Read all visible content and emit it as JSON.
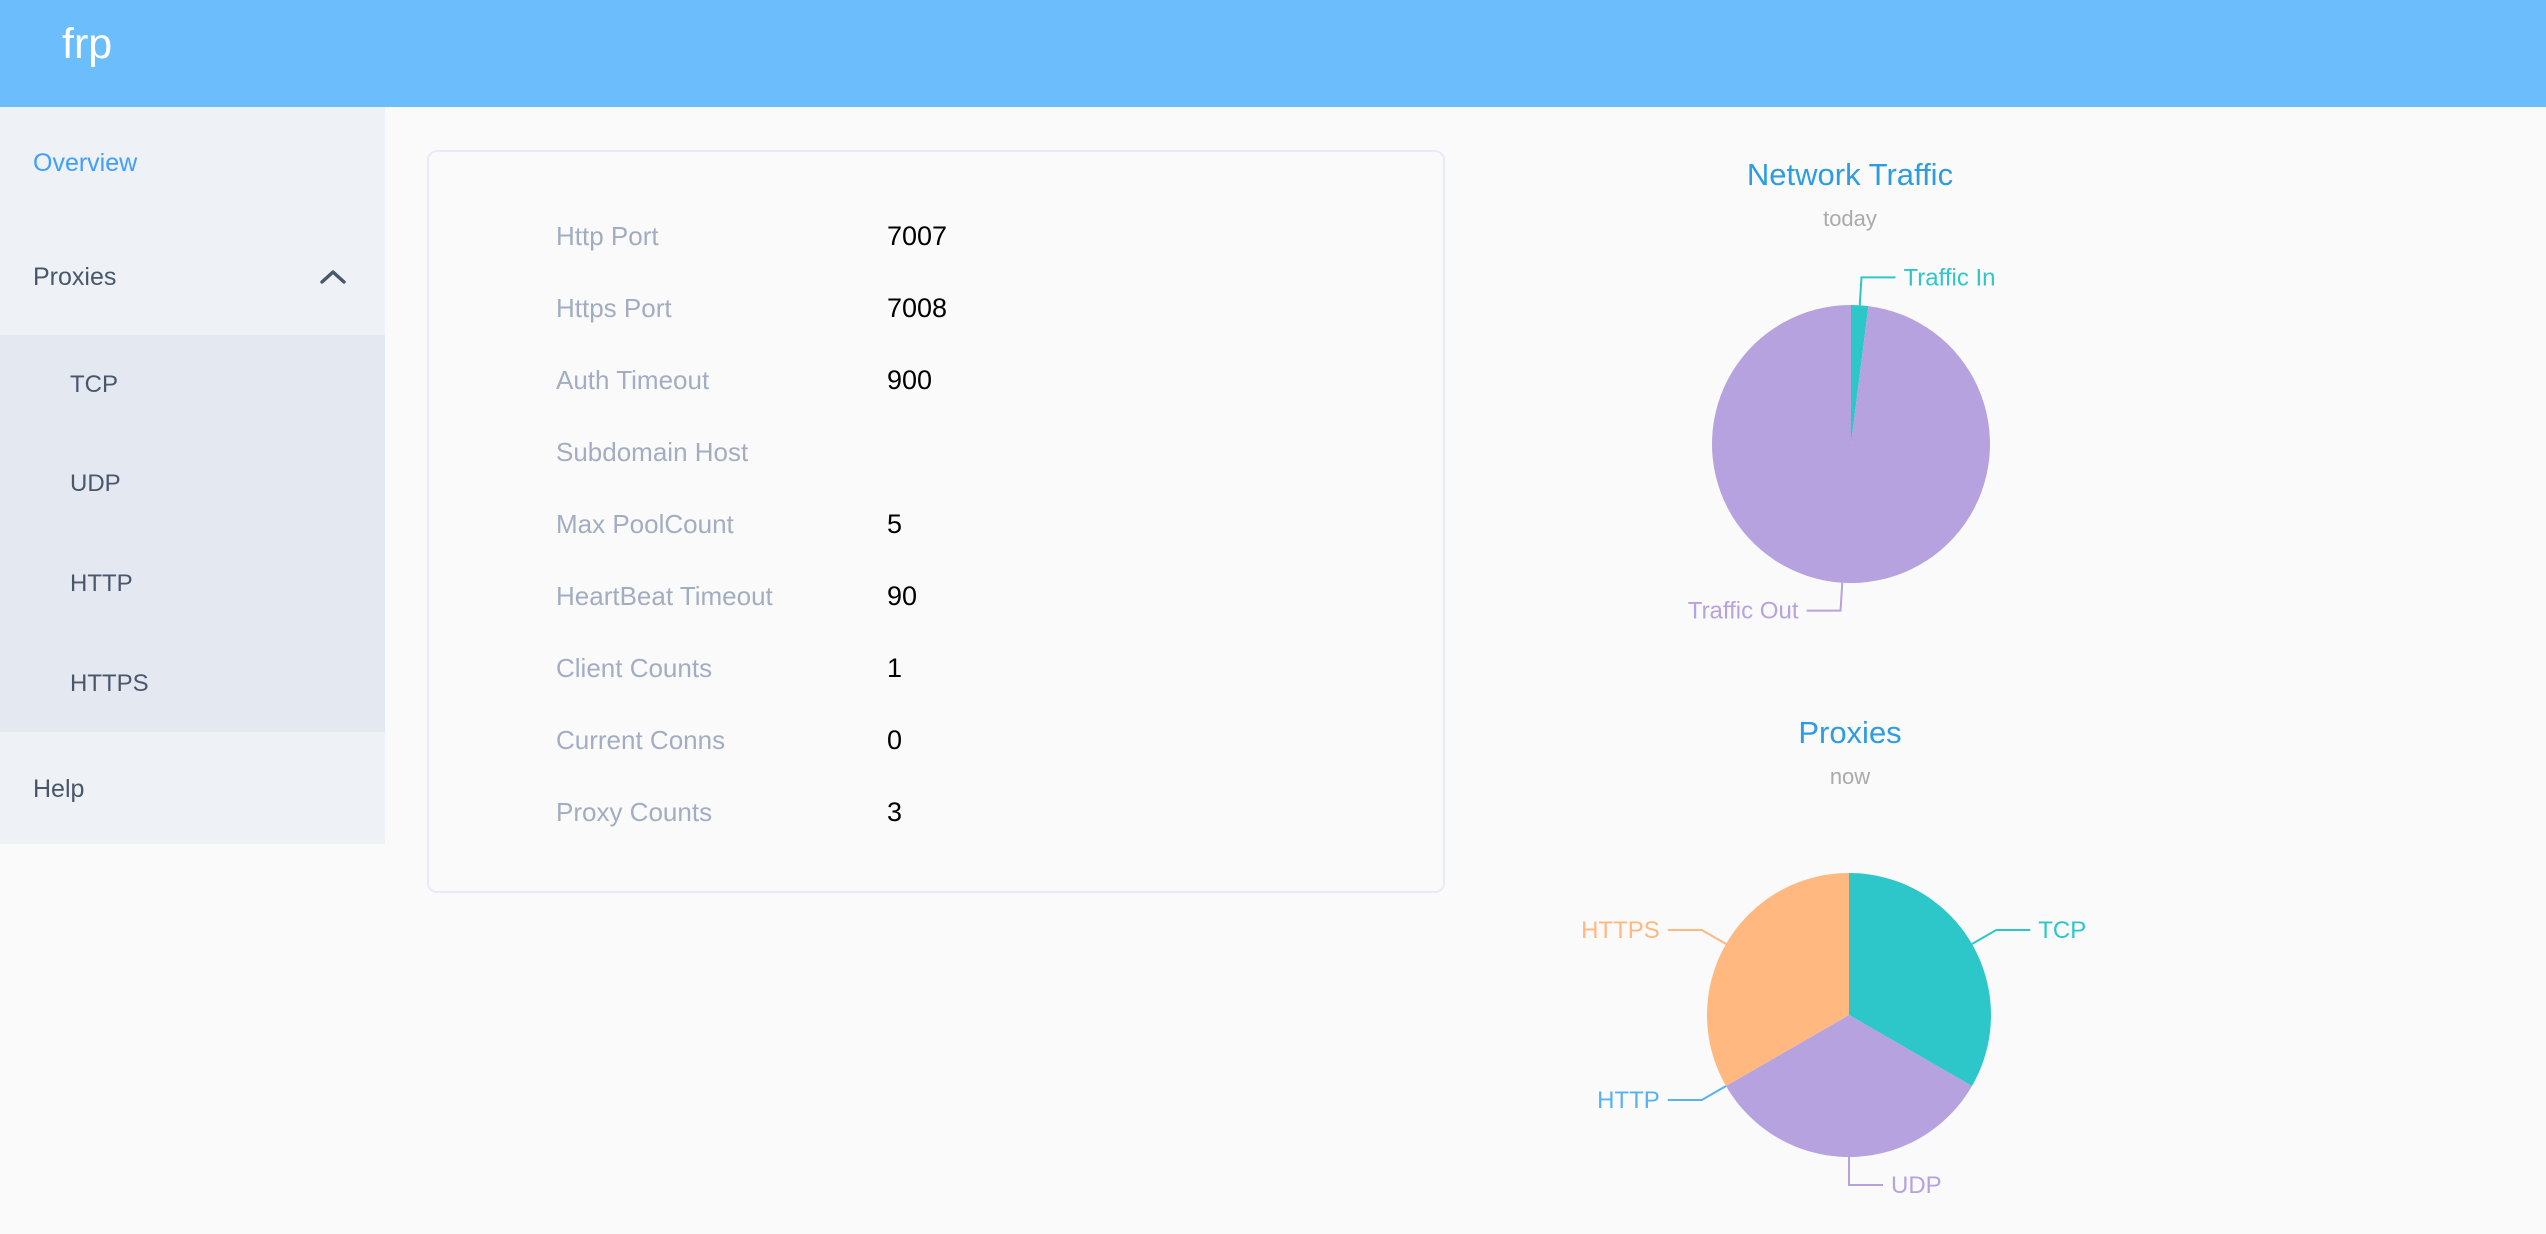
{
  "header": {
    "logo": "frp"
  },
  "sidebar": {
    "overview": "Overview",
    "proxies": "Proxies",
    "proxies_children": [
      "TCP",
      "UDP",
      "HTTP",
      "HTTPS"
    ],
    "help": "Help"
  },
  "server_info": {
    "rows": [
      {
        "label": "Http Port",
        "value": "7007"
      },
      {
        "label": "Https Port",
        "value": "7008"
      },
      {
        "label": "Auth Timeout",
        "value": "900"
      },
      {
        "label": "Subdomain Host",
        "value": ""
      },
      {
        "label": "Max PoolCount",
        "value": "5"
      },
      {
        "label": "HeartBeat Timeout",
        "value": "90"
      },
      {
        "label": "Client Counts",
        "value": "1"
      },
      {
        "label": "Current Conns",
        "value": "0"
      },
      {
        "label": "Proxy Counts",
        "value": "3"
      }
    ]
  },
  "chart_data": [
    {
      "type": "pie",
      "title": "Network Traffic",
      "subtitle": "today",
      "legend_position": "none",
      "label_style": "outside-with-leader-line",
      "series": [
        {
          "name": "Traffic In",
          "value": 2,
          "color": "#2ec7c9"
        },
        {
          "name": "Traffic Out",
          "value": 98,
          "color": "#b6a2de"
        }
      ]
    },
    {
      "type": "pie",
      "title": "Proxies",
      "subtitle": "now",
      "legend_position": "none",
      "label_style": "outside-with-leader-line",
      "series": [
        {
          "name": "TCP",
          "value": 1,
          "color": "#2ec7c9"
        },
        {
          "name": "UDP",
          "value": 1,
          "color": "#b6a2de"
        },
        {
          "name": "HTTP",
          "value": 0,
          "color": "#5ab1ef"
        },
        {
          "name": "HTTPS",
          "value": 1,
          "color": "#ffb980"
        }
      ]
    }
  ],
  "colors": {
    "header_bg": "#6cbdfb",
    "sidebar_bg": "#eef1f6",
    "submenu_bg": "#e4e8f1",
    "menu_text": "#48576a",
    "menu_active": "#409eff",
    "chart_title": "#2e9ce0",
    "chart_subtitle": "#aaaaaa",
    "info_label": "#a3adc2",
    "info_value": "#000000",
    "page_bg": "#fafafa"
  }
}
